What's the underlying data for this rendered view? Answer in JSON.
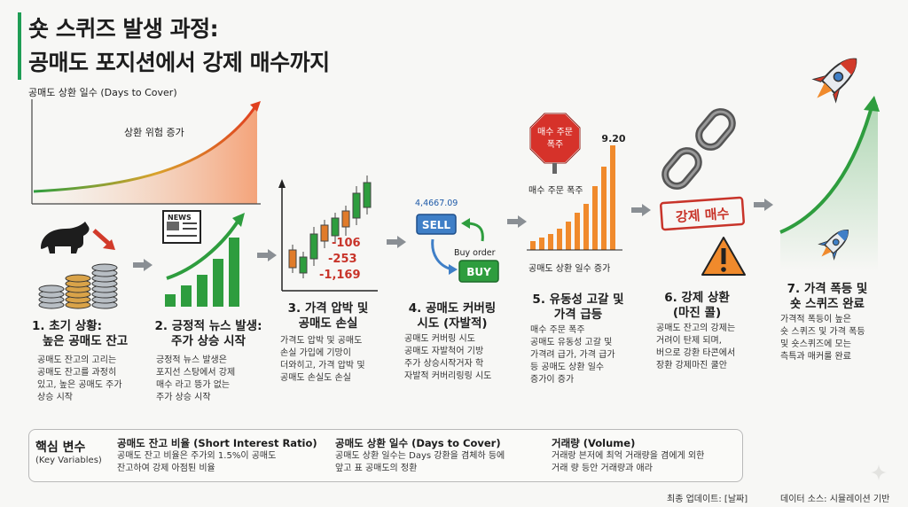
{
  "title": {
    "line1": "숏 스퀴즈 발생 과정:",
    "line2": "공매도 포지션에서 강제 매수까지"
  },
  "days_to_cover": {
    "label": "공매도 상환 일수 (Days to Cover)",
    "inner_label": "상환 위험 증가"
  },
  "steps": [
    {
      "title_lines": [
        "1. 초기 상황:",
        "높은 공매도 잔고"
      ],
      "desc_lines": [
        "공매도 잔고의 고리는",
        "공매도 잔고를 과정히",
        "있고, 높은 공매도 주가",
        "상승 시작"
      ]
    },
    {
      "title_lines": [
        "2. 긍정적 뉴스 발생:",
        "주가 상승 시작"
      ],
      "desc_lines": [
        "긍정적 뉴스 발생은",
        "포지선 스탕에서 강제",
        "매수 라고 뜽가 없는",
        "주가 상승 시작"
      ],
      "news_label": "NEWS"
    },
    {
      "title_lines": [
        "3. 가격 압박 및",
        "공매도 손실"
      ],
      "desc_lines": [
        "가격도 압박 및 공매도",
        "손실 가입에 기망이",
        "더와히고, 가격 압박 및",
        "공매도 손실도 손실"
      ],
      "loss_values": [
        "-106",
        "-253",
        "-1,169"
      ]
    },
    {
      "title_lines": [
        "4. 공매도 커버링",
        "시도 (자발적)"
      ],
      "desc_lines": [
        "공매도 커버링 시도",
        "공매도 자발척어 기방",
        "주가 상승시작거자 학",
        "자발적 커버리링링 시도"
      ],
      "price_tag": "4,4667.09",
      "sell_label": "SELL",
      "buy_order_label": "Buy order",
      "buy_label": "BUY"
    },
    {
      "title_lines": [
        "5. 유동성 고갈 및",
        "가격 급등"
      ],
      "desc_lines": [
        "매수 주문 폭주",
        "공매도 유동성 고갈 및",
        "가격려 급가, 가격 급가",
        "등 공매도 상환 일수",
        "증가이 증가"
      ],
      "stop_sign_lines": [
        "매수 주문",
        "폭주"
      ],
      "peak_value": "9.20",
      "chart_top_label": "매수 주문 폭주",
      "chart_bottom_label": "공매도 상환 일수 증가"
    },
    {
      "title_lines": [
        "6. 강제 상환",
        "(마진 콜)"
      ],
      "desc_lines": [
        "공매도 잔고의 강제는",
        "거려이 탄제 되며,",
        "버으로 강환 타콘에서",
        "장환 강제마진 쿨안"
      ],
      "stamp_label": "강제 매수"
    },
    {
      "title_lines": [
        "7. 가격 폭등 및",
        "숏 스퀴즈 완료"
      ],
      "desc_lines": [
        "가격적 폭등이 높은",
        "숏 스퀴즈 및 가격 폭등",
        "및 숏스퀴즈에 모는",
        "측특과 매커룰 완료"
      ]
    }
  ],
  "key_variables": {
    "heading": "핵심 변수",
    "heading_en": "(Key Variables)",
    "columns": [
      {
        "title": "공매도 잔고 비율 (Short Interest Ratio)",
        "desc_lines": [
          "공매도 잔고 비율은 주가외 1.5%이 공매도",
          "잔고하여 강제 아점퇸 비율"
        ]
      },
      {
        "title": "공매도 상환 일수 (Days to Cover)",
        "desc_lines": [
          "공매도 상환 일수는 Days 강환을 겸체하 등에",
          "앞고 표 공매도의 정환"
        ]
      },
      {
        "title": "거래량 (Volume)",
        "desc_lines": [
          "거래랑 븐저에 최억 거래량을 겸에게 외한",
          "거래 량 등안 거래량과 애라"
        ]
      }
    ]
  },
  "footer": {
    "updated": "최종 업데이트: [날짜]",
    "source": "데이터 소스: 시뮬레이션 기반"
  },
  "colors": {
    "green": "#2e9d3e",
    "red": "#d23a2a",
    "orange": "#f08a2c",
    "arrow_gray": "#8a8f94"
  }
}
